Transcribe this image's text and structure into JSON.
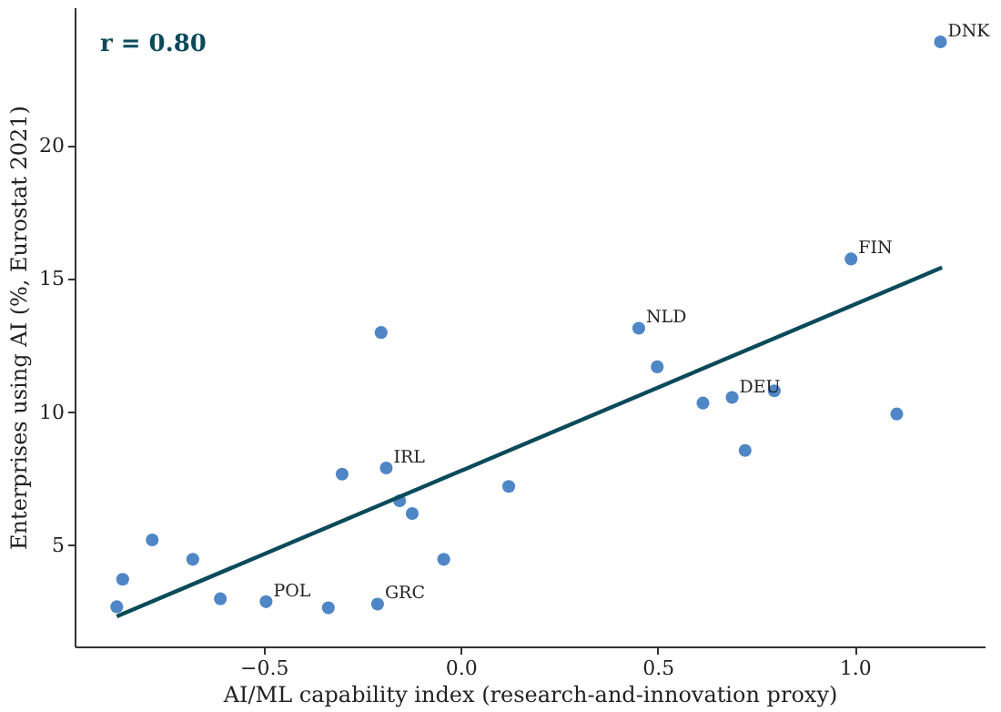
{
  "chart_data": {
    "type": "scatter",
    "xlabel": "AI/ML capability index (research-and-innovation proxy)",
    "ylabel": "Enterprises using AI (%, Eurostat 2021)",
    "xlim": [
      -0.98,
      1.33
    ],
    "ylim": [
      1.2,
      25.2
    ],
    "xticks": [
      {
        "value": -0.5,
        "label": "−0.5"
      },
      {
        "value": 0,
        "label": "0.0"
      },
      {
        "value": 0.5,
        "label": "0.5"
      },
      {
        "value": 1,
        "label": "1.0"
      }
    ],
    "yticks": [
      5,
      10,
      15,
      20
    ],
    "grid": false,
    "series": [
      {
        "marker": "circle",
        "color": "#4f86c6",
        "x": [
          1.218,
          0.991,
          0.452,
          0.499,
          0.615,
          0.689,
          0.796,
          0.722,
          1.107,
          0.122,
          -0.873,
          -0.858,
          -0.783,
          -0.68,
          -0.61,
          -0.494,
          -0.336,
          -0.211,
          -0.301,
          -0.189,
          -0.155,
          -0.123,
          -0.043,
          -0.202
        ],
        "values": [
          23.9,
          15.75,
          13.15,
          11.7,
          10.34,
          10.55,
          10.8,
          8.56,
          9.93,
          7.21,
          2.69,
          3.72,
          5.2,
          4.47,
          2.99,
          2.88,
          2.65,
          2.79,
          7.67,
          7.9,
          6.67,
          6.19,
          4.47,
          12.99
        ]
      },
      {
        "type": "line",
        "color": "#0b4a5a",
        "x": [
          -0.873,
          1.222
        ],
        "values": [
          2.33,
          15.43
        ]
      }
    ],
    "annotations": [
      "r = 0.80",
      {
        "text": "DNK",
        "x": 1.218,
        "y": 23.9
      },
      {
        "text": "FIN",
        "x": 0.991,
        "y": 15.75
      },
      {
        "text": "NLD",
        "x": 0.452,
        "y": 13.15
      },
      {
        "text": "DEU",
        "x": 0.689,
        "y": 10.55
      },
      {
        "text": "IRL",
        "x": -0.189,
        "y": 7.9
      },
      {
        "text": "POL",
        "x": -0.494,
        "y": 2.88
      },
      {
        "text": "GRC",
        "x": -0.211,
        "y": 2.79
      }
    ]
  }
}
